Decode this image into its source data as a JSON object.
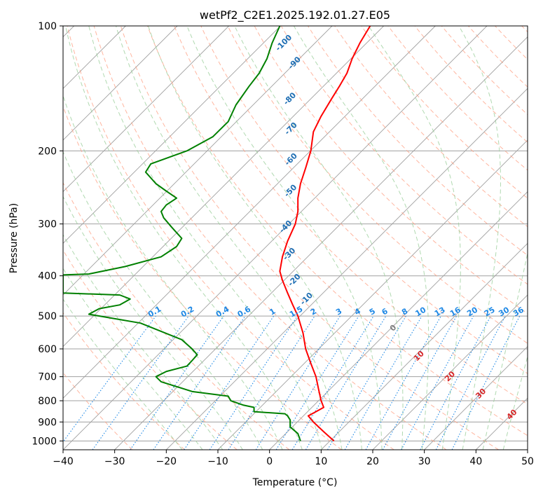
{
  "chart_data": {
    "type": "line",
    "title": "wetPf2_C2E1.2025.192.01.27.E05",
    "xlabel": "Temperature (°C)",
    "ylabel": "Pressure (hPa)",
    "xlim": [
      -40,
      50
    ],
    "ylim": [
      1050,
      100
    ],
    "y_scale": "log",
    "grid": true,
    "x_ticks": [
      "−40",
      "−30",
      "−20",
      "−10",
      "0",
      "10",
      "20",
      "30",
      "40",
      "50"
    ],
    "y_ticks": [
      "100",
      "200",
      "300",
      "400",
      "500",
      "600",
      "700",
      "800",
      "900",
      "1000"
    ],
    "colors": {
      "temperature": "#ff0000",
      "dewpoint": "#008000",
      "isotherm": "#a0a0a0",
      "dry_adiabat": "#ff9e80",
      "moist_adiabat": "#9ccf9c",
      "mixing_ratio": "#1e88e5",
      "dry_label": "#1f6fb4",
      "moist_label": "#d62728"
    },
    "series": [
      {
        "key": "temperature",
        "points": [
          [
            12.5,
            1000
          ],
          [
            10.5,
            950
          ],
          [
            8.5,
            900
          ],
          [
            7.5,
            870
          ],
          [
            9.0,
            850
          ],
          [
            10.5,
            830
          ],
          [
            10.0,
            800
          ],
          [
            9.5,
            750
          ],
          [
            9.0,
            700
          ],
          [
            8.0,
            650
          ],
          [
            7.0,
            600
          ],
          [
            6.5,
            550
          ],
          [
            5.5,
            500
          ],
          [
            4.5,
            470
          ],
          [
            3.5,
            440
          ],
          [
            2.5,
            410
          ],
          [
            2.0,
            390
          ],
          [
            2.5,
            360
          ],
          [
            3.5,
            330
          ],
          [
            5.0,
            300
          ],
          [
            5.5,
            280
          ],
          [
            5.5,
            260
          ],
          [
            6.0,
            240
          ],
          [
            7.0,
            220
          ],
          [
            8.0,
            200
          ],
          [
            8.5,
            180
          ],
          [
            10.0,
            165
          ],
          [
            12.0,
            150
          ],
          [
            13.5,
            140
          ],
          [
            15.0,
            130
          ],
          [
            16.0,
            120
          ],
          [
            17.5,
            110
          ],
          [
            19.5,
            100
          ]
        ]
      },
      {
        "key": "dewpoint",
        "points": [
          [
            6.0,
            1000
          ],
          [
            5.5,
            960
          ],
          [
            4.0,
            925
          ],
          [
            4.0,
            890
          ],
          [
            3.5,
            870
          ],
          [
            3.0,
            860
          ],
          [
            -3.0,
            850
          ],
          [
            -3.0,
            830
          ],
          [
            -5.0,
            820
          ],
          [
            -7.5,
            800
          ],
          [
            -8.0,
            780
          ],
          [
            -15.0,
            760
          ],
          [
            -21.0,
            720
          ],
          [
            -22.0,
            700
          ],
          [
            -20.0,
            680
          ],
          [
            -16.0,
            660
          ],
          [
            -15.0,
            640
          ],
          [
            -14.0,
            620
          ],
          [
            -15.0,
            600
          ],
          [
            -17.0,
            570
          ],
          [
            -25.0,
            520
          ],
          [
            -35.0,
            495
          ],
          [
            -33.0,
            480
          ],
          [
            -29.0,
            470
          ],
          [
            -27.0,
            455
          ],
          [
            -29.0,
            445
          ],
          [
            -40.0,
            440
          ],
          [
            -40.0,
            398
          ],
          [
            -35.0,
            396
          ],
          [
            -28.0,
            380
          ],
          [
            -21.0,
            360
          ],
          [
            -18.0,
            340
          ],
          [
            -17.0,
            325
          ],
          [
            -19.0,
            305
          ],
          [
            -20.5,
            290
          ],
          [
            -21.0,
            280
          ],
          [
            -20.0,
            270
          ],
          [
            -18.0,
            260
          ],
          [
            -20.0,
            250
          ],
          [
            -22.0,
            240
          ],
          [
            -24.0,
            225
          ],
          [
            -23.0,
            215
          ],
          [
            -16.0,
            200
          ],
          [
            -11.0,
            185
          ],
          [
            -8.0,
            170
          ],
          [
            -6.5,
            155
          ],
          [
            -4.0,
            140
          ],
          [
            -2.0,
            130
          ],
          [
            -0.5,
            120
          ],
          [
            0.5,
            110
          ],
          [
            2.0,
            100
          ]
        ]
      }
    ],
    "mixing_ratio_lines": [
      "0.1",
      "0.2",
      "0.4",
      "0.6",
      "1",
      "1.5",
      "2",
      "3",
      "4",
      "5",
      "6",
      "8",
      "10",
      "13",
      "16",
      "20",
      "25",
      "30",
      "36"
    ],
    "dry_adiabat_labels": [
      "-100",
      "-90",
      "-80",
      "-70",
      "-60",
      "-50",
      "-40",
      "-30",
      "-20",
      "-10"
    ],
    "moist_adiabat_labels": [
      "0",
      "10",
      "20",
      "30",
      "40"
    ]
  }
}
